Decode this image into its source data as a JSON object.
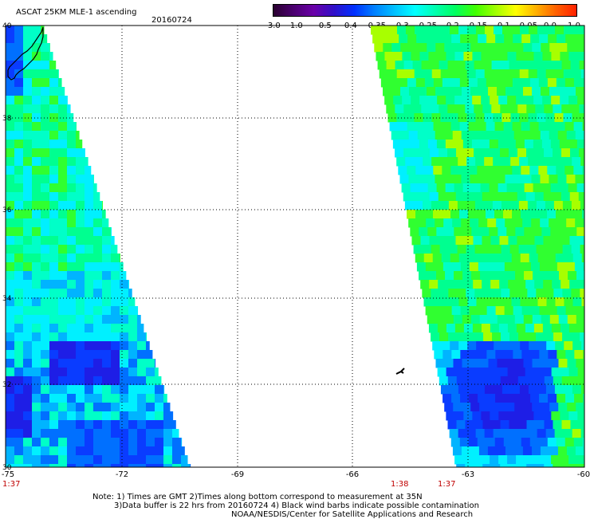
{
  "header": {
    "title": "ASCAT 25KM MLE-1 ascending",
    "date": "20160724"
  },
  "colorbar": {
    "ticks": [
      "-3.0",
      "-1.0",
      "-0.5",
      "-0.4",
      "-0.35",
      "-0.3",
      "-0.25",
      "-0.2",
      "-0.15",
      "-0.1",
      "-0.05",
      "0.0",
      "1.0"
    ],
    "colors": [
      "#2a0030",
      "#4b0070",
      "#6a00a8",
      "#3010c8",
      "#0030ff",
      "#0080ff",
      "#00c0ff",
      "#00ffff",
      "#00ffb0",
      "#00ff60",
      "#40ff00",
      "#a0ff00",
      "#ffff00",
      "#ffb000",
      "#ff6000",
      "#ff2000"
    ]
  },
  "axes": {
    "y_labels": [
      "40",
      "38",
      "36",
      "34",
      "32",
      "30"
    ],
    "x_labels": [
      "-75",
      "-72",
      "-69",
      "-66",
      "-63",
      "-60"
    ],
    "times": [
      {
        "text": "1:37"
      },
      {
        "text": "1:38"
      },
      {
        "text": "1:37"
      }
    ]
  },
  "notes": {
    "line1": "Note: 1) Times are GMT 2)Times along bottom correspond to measurement at 35N",
    "line2": "3)Data buffer is 22 hrs from 20160724 4) Black wind barbs indicate possible contamination",
    "line3": "NOAA/NESDIS/Center for Satellite Applications and Research"
  },
  "map": {
    "lat_range": [
      30,
      40
    ],
    "lon_range": [
      -75,
      -60
    ],
    "palette": {
      "blue_dark": "#1e1ee6",
      "blue": "#0a3cff",
      "blue_mid": "#0070ff",
      "cyan_blue": "#00b4ff",
      "cyan": "#00f0ff",
      "aqua": "#00ffc8",
      "green_light": "#00ff90",
      "green": "#30ff30",
      "yellow_green": "#a8ff00"
    }
  }
}
